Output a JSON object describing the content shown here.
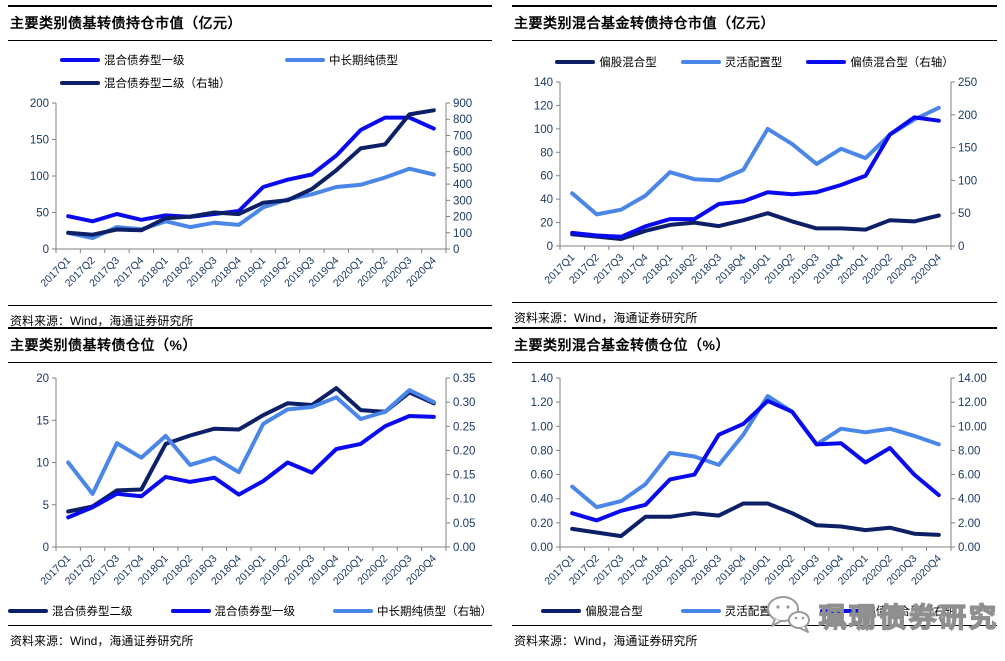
{
  "source_label": "资料来源：Wind，海通证券研究所",
  "watermark": {
    "icon": "wechat-icon",
    "text": "珮珊债券研究"
  },
  "colors": {
    "blue": "#0A0AF0",
    "light_blue": "#4A86E8",
    "navy": "#0D1F66",
    "axis_line": "#808080",
    "tick_text": "#17375E"
  },
  "chart_data": [
    {
      "type": "line",
      "title": "主要类别债基转债持仓市值（亿元）",
      "legend_position": "top",
      "grid": false,
      "categories": [
        "2017Q1",
        "2017Q2",
        "2017Q3",
        "2017Q4",
        "2018Q1",
        "2018Q2",
        "2018Q3",
        "2018Q4",
        "2019Q1",
        "2019Q2",
        "2019Q3",
        "2019Q4",
        "2020Q1",
        "2020Q2",
        "2020Q3",
        "2020Q4"
      ],
      "left_axis": {
        "min": 0,
        "max": 200,
        "step": 50,
        "decimals": 0
      },
      "right_axis": {
        "min": 0,
        "max": 900,
        "step": 100,
        "decimals": 0
      },
      "series": [
        {
          "name": "混合债券型一级",
          "color": "blue",
          "axis": "left",
          "values": [
            45,
            38,
            48,
            40,
            46,
            44,
            48,
            52,
            85,
            95,
            102,
            128,
            163,
            180,
            180,
            165
          ]
        },
        {
          "name": "中长期纯债型",
          "color": "light_blue",
          "axis": "left",
          "values": [
            22,
            15,
            30,
            27,
            38,
            30,
            36,
            33,
            57,
            68,
            75,
            85,
            88,
            98,
            110,
            102
          ]
        },
        {
          "name": "混合债券型二级（右轴）",
          "color": "navy",
          "axis": "right",
          "values": [
            100,
            88,
            120,
            115,
            190,
            200,
            225,
            215,
            285,
            300,
            370,
            485,
            620,
            645,
            830,
            855
          ]
        }
      ]
    },
    {
      "type": "line",
      "title": "主要类别混合基金转债持仓市值（亿元）",
      "legend_position": "top",
      "grid": false,
      "categories": [
        "2017Q1",
        "2017Q2",
        "2017Q3",
        "2017Q4",
        "2018Q1",
        "2018Q2",
        "2018Q3",
        "2018Q4",
        "2019Q1",
        "2019Q2",
        "2019Q3",
        "2019Q4",
        "2020Q1",
        "2020Q2",
        "2020Q3",
        "2020Q4"
      ],
      "left_axis": {
        "min": 0,
        "max": 140,
        "step": 20,
        "decimals": 0
      },
      "right_axis": {
        "min": 0,
        "max": 250,
        "step": 50,
        "decimals": 0
      },
      "series": [
        {
          "name": "偏股混合型",
          "color": "navy",
          "axis": "left",
          "values": [
            10,
            8,
            6,
            13,
            18,
            20,
            17,
            22,
            28,
            21,
            15,
            15,
            14,
            22,
            21,
            26
          ]
        },
        {
          "name": "灵活配置型",
          "color": "light_blue",
          "axis": "left",
          "values": [
            45,
            27,
            31,
            43,
            63,
            57,
            56,
            65,
            100,
            87,
            70,
            83,
            75,
            95,
            108,
            118
          ]
        },
        {
          "name": "偏债混合型（右轴）",
          "color": "blue",
          "axis": "right",
          "values": [
            20,
            16,
            14,
            30,
            41,
            41,
            64,
            68,
            82,
            79,
            82,
            93,
            107,
            170,
            196,
            191
          ]
        }
      ]
    },
    {
      "type": "line",
      "title": "主要类别债基转债仓位（%）",
      "legend_position": "bottom",
      "grid": false,
      "categories": [
        "2017Q1",
        "2017Q2",
        "2017Q3",
        "2017Q4",
        "2018Q1",
        "2018Q2",
        "2018Q3",
        "2018Q4",
        "2019Q1",
        "2019Q2",
        "2019Q3",
        "2019Q4",
        "2020Q1",
        "2020Q2",
        "2020Q3",
        "2020Q4"
      ],
      "left_axis": {
        "min": 0,
        "max": 20,
        "step": 5,
        "decimals": 0
      },
      "right_axis": {
        "min": 0,
        "max": 0.35,
        "step": 0.05,
        "decimals": 2
      },
      "series": [
        {
          "name": "混合债券型二级",
          "color": "navy",
          "axis": "left",
          "values": [
            4.2,
            4.8,
            6.7,
            6.8,
            12.2,
            13.2,
            14.0,
            13.9,
            15.6,
            17.0,
            16.8,
            18.8,
            16.2,
            16.0,
            18.3,
            17.0
          ]
        },
        {
          "name": "混合债券型一级",
          "color": "blue",
          "axis": "left",
          "values": [
            3.5,
            4.7,
            6.3,
            6.0,
            8.3,
            7.7,
            8.2,
            6.2,
            7.8,
            10.0,
            8.8,
            11.6,
            12.2,
            14.3,
            15.5,
            15.4
          ]
        },
        {
          "name": "中长期纯债型（右轴）",
          "color": "light_blue",
          "axis": "right",
          "values": [
            0.175,
            0.11,
            0.215,
            0.185,
            0.23,
            0.17,
            0.185,
            0.155,
            0.255,
            0.285,
            0.29,
            0.31,
            0.265,
            0.28,
            0.325,
            0.3
          ]
        }
      ]
    },
    {
      "type": "line",
      "title": "主要类别混合基金转债仓位（%）",
      "legend_position": "bottom",
      "grid": false,
      "categories": [
        "2017Q1",
        "2017Q2",
        "2017Q3",
        "2017Q4",
        "2018Q1",
        "2018Q2",
        "2018Q3",
        "2018Q4",
        "2019Q1",
        "2019Q2",
        "2019Q3",
        "2019Q4",
        "2020Q1",
        "2020Q2",
        "2020Q3",
        "2020Q4"
      ],
      "left_axis": {
        "min": 0,
        "max": 1.4,
        "step": 0.2,
        "decimals": 2
      },
      "right_axis": {
        "min": 0,
        "max": 14.0,
        "step": 2.0,
        "decimals": 2
      },
      "series": [
        {
          "name": "偏股混合型",
          "color": "navy",
          "axis": "left",
          "values": [
            0.15,
            0.12,
            0.09,
            0.25,
            0.25,
            0.28,
            0.26,
            0.36,
            0.36,
            0.28,
            0.18,
            0.17,
            0.14,
            0.16,
            0.11,
            0.1
          ]
        },
        {
          "name": "灵活配置型",
          "color": "light_blue",
          "axis": "left",
          "values": [
            0.5,
            0.33,
            0.38,
            0.52,
            0.78,
            0.75,
            0.68,
            0.93,
            1.25,
            1.12,
            0.85,
            0.98,
            0.95,
            0.98,
            0.92,
            0.85
          ]
        },
        {
          "name": "偏债混合型（右轴）",
          "color": "blue",
          "axis": "right",
          "values": [
            2.8,
            2.2,
            3.0,
            3.5,
            5.6,
            6.0,
            9.3,
            10.2,
            12.1,
            11.2,
            8.5,
            8.6,
            7.0,
            8.2,
            6.0,
            4.3
          ]
        }
      ]
    }
  ]
}
